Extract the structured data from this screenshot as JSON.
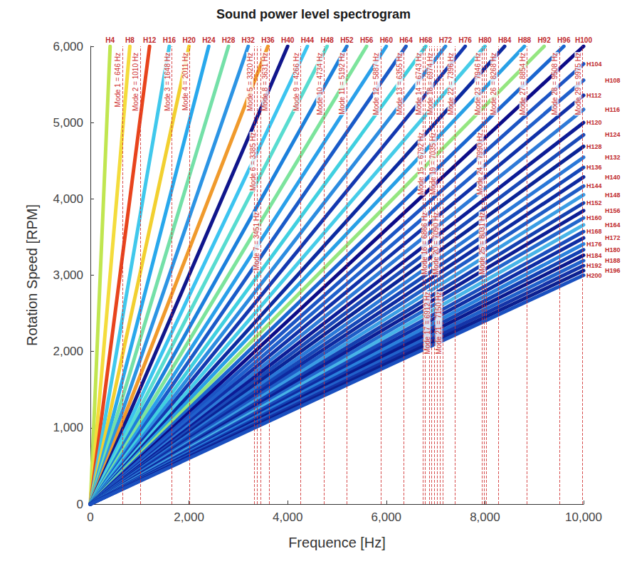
{
  "chart_data": {
    "type": "line",
    "title": "Sound power level spectrogram",
    "x_label": "Frequence [Hz]",
    "y_label": "Rotation Speed [RPM]",
    "xlim": [
      0,
      10000
    ],
    "ylim": [
      0,
      6000
    ],
    "xticks": [
      0,
      2000,
      4000,
      6000,
      8000,
      10000
    ],
    "yticks": [
      0,
      1000,
      2000,
      3000,
      4000,
      5000,
      6000
    ],
    "grid": false,
    "series": [
      {
        "name": "H4",
        "color": "#c0e650",
        "x": [
          0,
          400
        ],
        "values": [
          0,
          6000
        ]
      },
      {
        "name": "H8",
        "color": "#f4dc3c",
        "x": [
          0,
          800
        ],
        "values": [
          0,
          6000
        ]
      },
      {
        "name": "H12",
        "color": "#e8441c",
        "x": [
          0,
          1200
        ],
        "values": [
          0,
          6000
        ]
      },
      {
        "name": "H16",
        "color": "#40c8ec",
        "x": [
          0,
          1600
        ],
        "values": [
          0,
          6000
        ]
      },
      {
        "name": "H20",
        "color": "#f2d030",
        "x": [
          0,
          2000
        ],
        "values": [
          0,
          6000
        ]
      },
      {
        "name": "H24",
        "color": "#28a8ec",
        "x": [
          0,
          2400
        ],
        "values": [
          0,
          6000
        ]
      },
      {
        "name": "H28",
        "color": "#74e0a8",
        "x": [
          0,
          2800
        ],
        "values": [
          0,
          6000
        ]
      },
      {
        "name": "H32",
        "color": "#2c94e4",
        "x": [
          0,
          3200
        ],
        "values": [
          0,
          6000
        ]
      },
      {
        "name": "H36",
        "color": "#f09a2c",
        "x": [
          0,
          3600
        ],
        "values": [
          0,
          6000
        ]
      },
      {
        "name": "H40",
        "color": "#10168c",
        "x": [
          0,
          4000
        ],
        "values": [
          0,
          6000
        ]
      },
      {
        "name": "H44",
        "color": "#3cc4f0",
        "x": [
          0,
          4400
        ],
        "values": [
          0,
          6000
        ]
      },
      {
        "name": "H48",
        "color": "#58dcd0",
        "x": [
          0,
          4800
        ],
        "values": [
          0,
          6000
        ]
      },
      {
        "name": "H52",
        "color": "#1c80dc",
        "x": [
          0,
          5200
        ],
        "values": [
          0,
          6000
        ]
      },
      {
        "name": "H56",
        "color": "#7ce49c",
        "x": [
          0,
          5600
        ],
        "values": [
          0,
          6000
        ]
      },
      {
        "name": "H60",
        "color": "#2aa0ea",
        "x": [
          0,
          6000
        ],
        "values": [
          0,
          6000
        ]
      },
      {
        "name": "H64",
        "color": "#1a5ac8",
        "x": [
          0,
          6400
        ],
        "values": [
          0,
          6000
        ]
      },
      {
        "name": "H68",
        "color": "#40d0e0",
        "x": [
          0,
          6800
        ],
        "values": [
          0,
          6000
        ]
      },
      {
        "name": "H72",
        "color": "#2c8ce0",
        "x": [
          0,
          7200
        ],
        "values": [
          0,
          6000
        ]
      },
      {
        "name": "H76",
        "color": "#1438b0",
        "x": [
          0,
          7600
        ],
        "values": [
          0,
          6000
        ]
      },
      {
        "name": "H80",
        "color": "#46cce8",
        "x": [
          0,
          8000
        ],
        "values": [
          0,
          6000
        ]
      },
      {
        "name": "H84",
        "color": "#0c2aa0",
        "x": [
          0,
          8400
        ],
        "values": [
          0,
          6000
        ]
      },
      {
        "name": "H88",
        "color": "#28a0e6",
        "x": [
          0,
          8800
        ],
        "values": [
          0,
          6000
        ]
      },
      {
        "name": "H92",
        "color": "#94e680",
        "x": [
          0,
          9200
        ],
        "values": [
          0,
          6000
        ]
      },
      {
        "name": "H96",
        "color": "#1a66d0",
        "x": [
          0,
          9600
        ],
        "values": [
          0,
          6000
        ]
      },
      {
        "name": "H100",
        "color": "#0c0c88",
        "x": [
          0,
          10000
        ],
        "values": [
          0,
          6000
        ]
      },
      {
        "name": "H104",
        "color": "#1c54c4",
        "x": [
          0,
          10000
        ],
        "values": [
          0,
          5769
        ]
      },
      {
        "name": "H108",
        "color": "#2060cc",
        "x": [
          0,
          10000
        ],
        "values": [
          0,
          5556
        ]
      },
      {
        "name": "H112",
        "color": "#1030a8",
        "x": [
          0,
          10000
        ],
        "values": [
          0,
          5357
        ]
      },
      {
        "name": "H116",
        "color": "#2e7ad8",
        "x": [
          0,
          10000
        ],
        "values": [
          0,
          5172
        ]
      },
      {
        "name": "H120",
        "color": "#0c1c96",
        "x": [
          0,
          10000
        ],
        "values": [
          0,
          5000
        ]
      },
      {
        "name": "H124",
        "color": "#1a4ab8",
        "x": [
          0,
          10000
        ],
        "values": [
          0,
          4839
        ]
      },
      {
        "name": "H128",
        "color": "#0a2496",
        "x": [
          0,
          10000
        ],
        "values": [
          0,
          4688
        ]
      },
      {
        "name": "H132",
        "color": "#2a78d8",
        "x": [
          0,
          10000
        ],
        "values": [
          0,
          4545
        ]
      },
      {
        "name": "H136",
        "color": "#1648b8",
        "x": [
          0,
          10000
        ],
        "values": [
          0,
          4412
        ]
      },
      {
        "name": "H140",
        "color": "#0e2aa0",
        "x": [
          0,
          10000
        ],
        "values": [
          0,
          4286
        ]
      },
      {
        "name": "H144",
        "color": "#1e5cc6",
        "x": [
          0,
          10000
        ],
        "values": [
          0,
          4167
        ]
      },
      {
        "name": "H148",
        "color": "#3a9ce4",
        "x": [
          0,
          10000
        ],
        "values": [
          0,
          4054
        ]
      },
      {
        "name": "H152",
        "color": "#1440b0",
        "x": [
          0,
          10000
        ],
        "values": [
          0,
          3947
        ]
      },
      {
        "name": "H156",
        "color": "#0c1e94",
        "x": [
          0,
          10000
        ],
        "values": [
          0,
          3846
        ]
      },
      {
        "name": "H160",
        "color": "#2266cc",
        "x": [
          0,
          10000
        ],
        "values": [
          0,
          3750
        ]
      },
      {
        "name": "H164",
        "color": "#48b4e8",
        "x": [
          0,
          10000
        ],
        "values": [
          0,
          3659
        ]
      },
      {
        "name": "H168",
        "color": "#1a4cbc",
        "x": [
          0,
          10000
        ],
        "values": [
          0,
          3571
        ]
      },
      {
        "name": "H172",
        "color": "#0e2ca2",
        "x": [
          0,
          10000
        ],
        "values": [
          0,
          3488
        ]
      },
      {
        "name": "H176",
        "color": "#2a80dc",
        "x": [
          0,
          10000
        ],
        "values": [
          0,
          3409
        ]
      },
      {
        "name": "H180",
        "color": "#1240b2",
        "x": [
          0,
          10000
        ],
        "values": [
          0,
          3333
        ]
      },
      {
        "name": "H184",
        "color": "#0a1a8e",
        "x": [
          0,
          10000
        ],
        "values": [
          0,
          3261
        ]
      },
      {
        "name": "H188",
        "color": "#2060ca",
        "x": [
          0,
          10000
        ],
        "values": [
          0,
          3191
        ]
      },
      {
        "name": "H192",
        "color": "#1434a8",
        "x": [
          0,
          10000
        ],
        "values": [
          0,
          3125
        ]
      },
      {
        "name": "H196",
        "color": "#0c2090",
        "x": [
          0,
          10000
        ],
        "values": [
          0,
          3061
        ]
      },
      {
        "name": "H200",
        "color": "#1a50c0",
        "x": [
          0,
          10000
        ],
        "values": [
          0,
          3000
        ]
      }
    ],
    "annotations": [
      {
        "label": "Mode 1 = 646 Hz",
        "x": 646
      },
      {
        "label": "Mode 2 = 1010 Hz",
        "x": 1010
      },
      {
        "label": "Mode 3 = 1648 Hz",
        "x": 1648
      },
      {
        "label": "Mode 4 = 2011 Hz",
        "x": 2011
      },
      {
        "label": "Mode 5 = 3320 Hz",
        "x": 3320
      },
      {
        "label": "Mode 6 = 3385 Hz",
        "x": 3385
      },
      {
        "label": "Mode 7 = 3451 Hz",
        "x": 3451
      },
      {
        "label": "Mode 8 = 3631 Hz",
        "x": 3631
      },
      {
        "label": "Mode 9 = 4266 Hz",
        "x": 4266
      },
      {
        "label": "Mode 10 = 4734 Hz",
        "x": 4734
      },
      {
        "label": "Mode 11 = 5192 Hz",
        "x": 5192
      },
      {
        "label": "Mode 12 = 5887 Hz",
        "x": 5887
      },
      {
        "label": "Mode 13 = 6355 Hz",
        "x": 6355
      },
      {
        "label": "Mode 14 = 6743 Hz",
        "x": 6743
      },
      {
        "label": "Mode 15 = 6792 Hz",
        "x": 6792
      },
      {
        "label": "Mode 16 = 6866 Hz",
        "x": 6866
      },
      {
        "label": "Mode 17 = 6912 Hz",
        "x": 6912
      },
      {
        "label": "Mode 18 = 6974 Hz",
        "x": 6974
      },
      {
        "label": "Mode 19 = 7035 Hz",
        "x": 7035
      },
      {
        "label": "Mode 20 = 7090 Hz",
        "x": 7090
      },
      {
        "label": "Mode 21 = 7150 Hz",
        "x": 7150
      },
      {
        "label": "Mode 22 = 7396 Hz",
        "x": 7396
      },
      {
        "label": "Mode 23 = 7946 Hz",
        "x": 7946
      },
      {
        "label": "Mode 24 = 7990 Hz",
        "x": 7990
      },
      {
        "label": "Mode 25 = 8031 Hz",
        "x": 8031
      },
      {
        "label": "Mode 26 = 8268 Hz",
        "x": 8268
      },
      {
        "label": "Mode 27 = 8854 Hz",
        "x": 8854
      },
      {
        "label": "Mode 28 = 9508 Hz",
        "x": 9508
      },
      {
        "label": "Mode 29 = 9975 Hz",
        "x": 9975
      }
    ]
  }
}
